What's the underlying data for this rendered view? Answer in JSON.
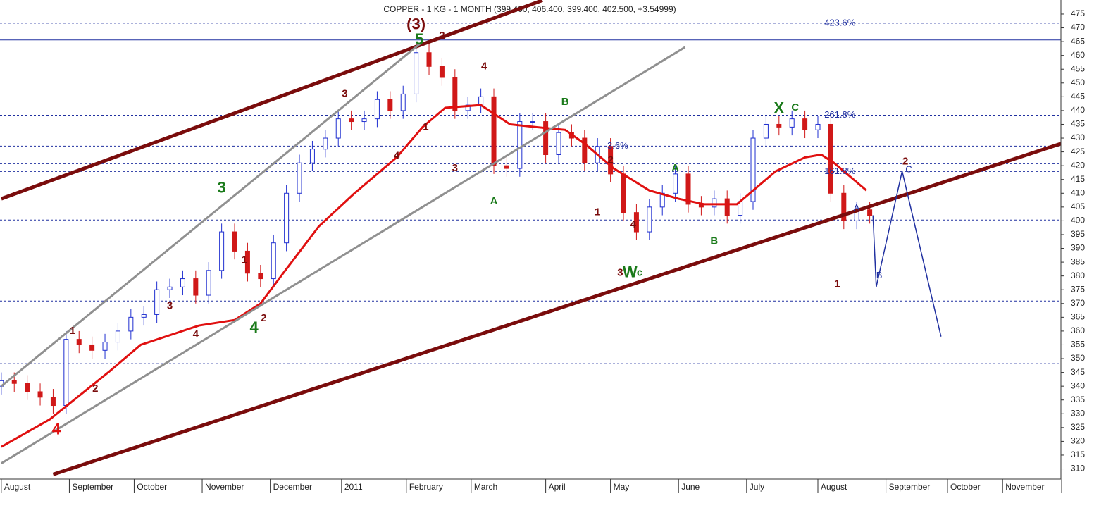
{
  "chart_data": {
    "type": "candlestick",
    "title": "COPPER - 1 KG - 1 MONTH (399.400, 406.400, 399.400, 402.500, +3.54999)",
    "x": [
      0,
      4,
      8,
      12,
      16,
      20,
      24,
      28,
      32,
      36,
      40,
      44,
      48,
      52,
      56,
      60,
      64,
      68,
      72,
      76,
      80,
      84,
      88,
      92,
      96,
      100,
      104,
      108,
      112,
      116,
      120,
      124,
      128,
      132,
      136,
      140,
      144,
      148,
      152,
      156,
      160,
      164,
      168,
      172,
      176,
      180,
      184,
      188,
      192,
      196,
      200,
      204,
      208,
      212,
      216,
      220,
      224,
      228,
      232,
      236,
      240,
      244,
      248,
      252,
      256,
      260,
      264,
      268
    ],
    "open": [
      340,
      342,
      341,
      338,
      336,
      333,
      357,
      355,
      353,
      356,
      360,
      365,
      366,
      375,
      376,
      379,
      373,
      382,
      396,
      389,
      381,
      379,
      392,
      410,
      421,
      426,
      430,
      437,
      436,
      437,
      444,
      440,
      446,
      461,
      456,
      452,
      440,
      442,
      445,
      420,
      419,
      436,
      436,
      424,
      432,
      430,
      421,
      427,
      417,
      403,
      396,
      405,
      410,
      417,
      406,
      405,
      408,
      402,
      407,
      430,
      435,
      434,
      437,
      433,
      435,
      410,
      400,
      404
    ],
    "high": [
      345,
      345,
      344,
      341,
      339,
      360,
      360,
      358,
      359,
      363,
      368,
      369,
      378,
      379,
      382,
      382,
      385,
      399,
      399,
      392,
      384,
      395,
      413,
      424,
      429,
      433,
      440,
      440,
      440,
      447,
      447,
      449,
      464,
      464,
      459,
      455,
      445,
      448,
      448,
      423,
      439,
      439,
      439,
      435,
      435,
      433,
      430,
      430,
      420,
      406,
      408,
      413,
      420,
      420,
      409,
      411,
      411,
      410,
      433,
      438,
      438,
      440,
      440,
      438,
      438,
      413,
      407,
      407
    ],
    "low": [
      337,
      338,
      335,
      333,
      330,
      330,
      352,
      350,
      350,
      353,
      357,
      362,
      363,
      372,
      373,
      370,
      370,
      379,
      386,
      378,
      376,
      376,
      389,
      407,
      418,
      423,
      427,
      433,
      433,
      434,
      437,
      437,
      443,
      453,
      449,
      437,
      437,
      439,
      417,
      416,
      416,
      433,
      421,
      421,
      427,
      418,
      418,
      414,
      400,
      393,
      393,
      402,
      407,
      403,
      402,
      402,
      399,
      399,
      404,
      427,
      431,
      431,
      430,
      430,
      407,
      397,
      397,
      399
    ],
    "close": [
      342,
      341,
      338,
      336,
      333,
      357,
      355,
      353,
      356,
      360,
      365,
      366,
      375,
      376,
      379,
      373,
      382,
      396,
      389,
      381,
      379,
      392,
      410,
      421,
      426,
      430,
      437,
      436,
      437,
      444,
      440,
      446,
      461,
      456,
      452,
      440,
      442,
      445,
      420,
      419,
      436,
      436,
      424,
      432,
      430,
      421,
      427,
      417,
      403,
      396,
      405,
      410,
      417,
      406,
      405,
      408,
      402,
      407,
      430,
      435,
      434,
      437,
      433,
      435,
      410,
      400,
      404,
      402
    ],
    "up_color": "#1f2fd0",
    "down_color": "#d01818",
    "moving_average": {
      "color": "#e01010",
      "x": [
        0,
        15,
        33,
        43,
        61,
        72,
        80,
        87,
        98,
        109,
        122,
        130,
        137,
        148,
        157,
        165,
        174,
        180,
        189,
        200,
        209,
        217,
        227,
        230,
        239,
        248,
        253,
        257,
        267
      ],
      "values": [
        318,
        328,
        345,
        355,
        362,
        364,
        370,
        381,
        398,
        410,
        423,
        434,
        441,
        442,
        435,
        434,
        433,
        428,
        419,
        411,
        408,
        406,
        406,
        409,
        418,
        423,
        424,
        421,
        411
      ]
    },
    "xlim": [
      -0.4,
      327
    ],
    "xticks": [
      {
        "value": 0,
        "label": "August"
      },
      {
        "value": 21,
        "label": "September"
      },
      {
        "value": 41,
        "label": "October"
      },
      {
        "value": 62,
        "label": "November"
      },
      {
        "value": 83,
        "label": "December"
      },
      {
        "value": 105,
        "label": "2011"
      },
      {
        "value": 125,
        "label": "February"
      },
      {
        "value": 145,
        "label": "March"
      },
      {
        "value": 168,
        "label": "April"
      },
      {
        "value": 188,
        "label": "May"
      },
      {
        "value": 209,
        "label": "June"
      },
      {
        "value": 230,
        "label": "July"
      },
      {
        "value": 252,
        "label": "August"
      },
      {
        "value": 273,
        "label": "September"
      },
      {
        "value": 292,
        "label": "October"
      },
      {
        "value": 309,
        "label": "November"
      }
    ],
    "ylim": [
      306.3,
      478.3
    ],
    "yticks": [
      310,
      315,
      320,
      325,
      330,
      335,
      340,
      345,
      350,
      355,
      360,
      365,
      370,
      375,
      380,
      385,
      390,
      395,
      400,
      405,
      410,
      415,
      420,
      425,
      430,
      435,
      440,
      445,
      450,
      455,
      460,
      465,
      470,
      475
    ],
    "levels": {
      "color": "#2030a0",
      "dashed": [
        471.7,
        438.3,
        427.1,
        420.7,
        417.9,
        400.3,
        370.9,
        348.2
      ],
      "solid": [
        465.6
      ]
    },
    "trendlines": [
      {
        "color": "#7a0c0c",
        "width": 5,
        "points": [
          [
            0,
            408
          ],
          [
            167,
            480
          ]
        ]
      },
      {
        "color": "#7a0c0c",
        "width": 5,
        "points": [
          [
            16,
            308
          ],
          [
            327,
            428
          ]
        ]
      },
      {
        "color": "#909090",
        "width": 3,
        "points": [
          [
            0,
            340
          ],
          [
            130,
            465
          ]
        ]
      },
      {
        "color": "#909090",
        "width": 3,
        "points": [
          [
            0,
            312
          ],
          [
            211,
            463
          ]
        ]
      },
      {
        "color": "#2030a0",
        "width": 1.5,
        "points": [
          [
            269,
            402
          ],
          [
            270,
            376
          ],
          [
            278,
            418
          ],
          [
            290,
            358
          ]
        ]
      }
    ],
    "annotations": [
      {
        "text": "(3)",
        "x": 128,
        "y": 471,
        "color": "#7a0c0c",
        "style": "major"
      },
      {
        "text": "5",
        "x": 129,
        "y": 465.5,
        "color": "#1a7a1a",
        "style": "major"
      },
      {
        "text": "2",
        "x": 136,
        "y": 467,
        "color": "#7a0c0c",
        "style": "minor"
      },
      {
        "text": "3",
        "x": 106,
        "y": 446,
        "color": "#7a0c0c",
        "style": "minor"
      },
      {
        "text": "4",
        "x": 149,
        "y": 456,
        "color": "#7a0c0c",
        "style": "minor"
      },
      {
        "text": "4",
        "x": 122,
        "y": 423.5,
        "color": "#7a0c0c",
        "style": "minor"
      },
      {
        "text": "3",
        "x": 140,
        "y": 419,
        "color": "#7a0c0c",
        "style": "minor"
      },
      {
        "text": "1",
        "x": 131,
        "y": 434,
        "color": "#7a0c0c",
        "style": "minor"
      },
      {
        "text": "B",
        "x": 174,
        "y": 443,
        "color": "#1a7a1a",
        "style": "minor"
      },
      {
        "text": "A",
        "x": 152,
        "y": 407,
        "color": "#1a7a1a",
        "style": "minor"
      },
      {
        "text": "3.6%",
        "x": 187,
        "y": 427,
        "color": "#2030a0",
        "style": "fib"
      },
      {
        "text": "2",
        "x": 188,
        "y": 422,
        "color": "#7a0c0c",
        "style": "minor"
      },
      {
        "text": "1",
        "x": 184,
        "y": 403,
        "color": "#7a0c0c",
        "style": "minor"
      },
      {
        "text": "4",
        "x": 195,
        "y": 398.5,
        "color": "#7a0c0c",
        "style": "minor"
      },
      {
        "text": "3",
        "x": 191,
        "y": 381,
        "color": "#7a0c0c",
        "style": "minor"
      },
      {
        "text": "W",
        "x": 194,
        "y": 381,
        "color": "#1a7a1a",
        "style": "major"
      },
      {
        "text": "c",
        "x": 197,
        "y": 381,
        "color": "#1a7a1a",
        "style": "minor"
      },
      {
        "text": "A",
        "x": 208,
        "y": 419,
        "color": "#1a7a1a",
        "style": "minor"
      },
      {
        "text": "B",
        "x": 220,
        "y": 392.6,
        "color": "#1a7a1a",
        "style": "minor"
      },
      {
        "text": "X",
        "x": 240,
        "y": 440.6,
        "color": "#1a7a1a",
        "style": "major"
      },
      {
        "text": "C",
        "x": 245,
        "y": 441,
        "color": "#1a7a1a",
        "style": "minor"
      },
      {
        "text": "1",
        "x": 258,
        "y": 377,
        "color": "#7a0c0c",
        "style": "minor"
      },
      {
        "text": "2",
        "x": 279,
        "y": 421.5,
        "color": "#7a0c0c",
        "style": "minor"
      },
      {
        "text": "C",
        "x": 279,
        "y": 418.5,
        "color": "#2030a0",
        "style": "fib"
      },
      {
        "text": "B",
        "x": 270,
        "y": 380,
        "color": "#2030a0",
        "style": "fib"
      },
      {
        "text": "A",
        "x": 263,
        "y": 404.6,
        "color": "#2030a0",
        "style": "fib"
      },
      {
        "text": "3",
        "x": 68,
        "y": 411.7,
        "color": "#1a7a1a",
        "style": "major"
      },
      {
        "text": "1",
        "x": 75,
        "y": 385.7,
        "color": "#7a0c0c",
        "style": "minor"
      },
      {
        "text": "4",
        "x": 78,
        "y": 361,
        "color": "#1a7a1a",
        "style": "major"
      },
      {
        "text": "2",
        "x": 81,
        "y": 364.6,
        "color": "#7a0c0c",
        "style": "minor"
      },
      {
        "text": "3",
        "x": 52,
        "y": 369,
        "color": "#7a0c0c",
        "style": "minor"
      },
      {
        "text": "4",
        "x": 60,
        "y": 358.7,
        "color": "#7a0c0c",
        "style": "minor"
      },
      {
        "text": "1",
        "x": 22,
        "y": 360,
        "color": "#7a0c0c",
        "style": "minor"
      },
      {
        "text": "2",
        "x": 29,
        "y": 339,
        "color": "#7a0c0c",
        "style": "minor"
      },
      {
        "text": "4",
        "x": 17,
        "y": 324,
        "color": "#e01010",
        "style": "major"
      },
      {
        "text": "423.6%",
        "x": 254,
        "y": 471.7,
        "color": "#2030a0",
        "style": "fib"
      },
      {
        "text": "261.8%",
        "x": 254,
        "y": 438.3,
        "color": "#2030a0",
        "style": "fib"
      },
      {
        "text": "161.8%",
        "x": 254,
        "y": 417.9,
        "color": "#2030a0",
        "style": "fib"
      }
    ]
  }
}
